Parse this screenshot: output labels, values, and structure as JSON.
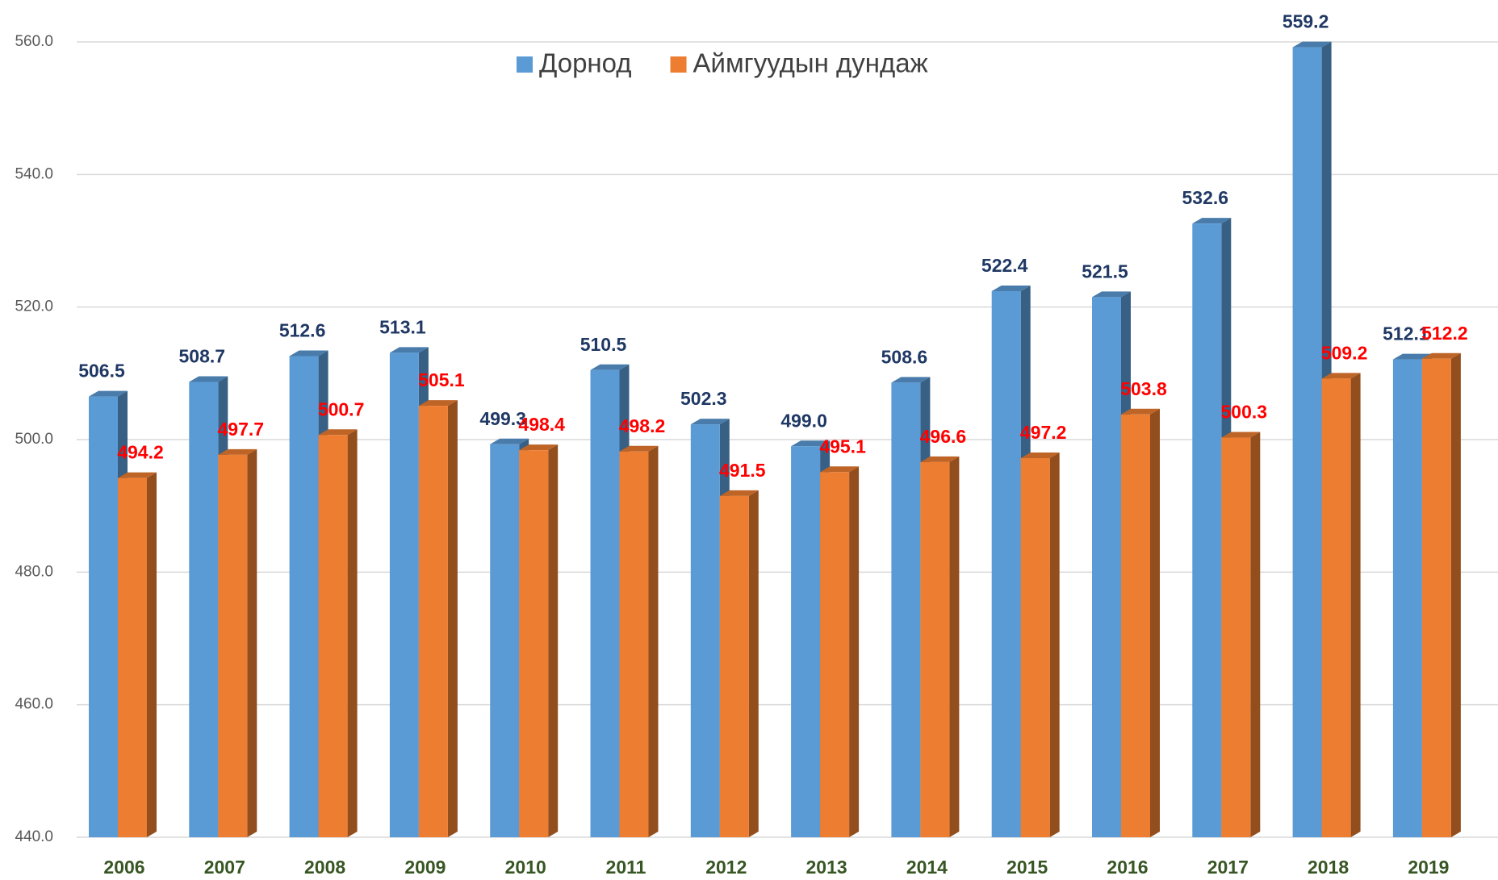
{
  "chart_data": {
    "type": "bar3d",
    "categories": [
      "2006",
      "2007",
      "2008",
      "2009",
      "2010",
      "2011",
      "2012",
      "2013",
      "2014",
      "2015",
      "2016",
      "2017",
      "2018",
      "2019"
    ],
    "series": [
      {
        "name": "Дорнод",
        "color": "#5b9bd5",
        "label_color": "#1f3864",
        "values": [
          506.5,
          508.7,
          512.6,
          513.1,
          499.3,
          510.5,
          502.3,
          499.0,
          508.6,
          522.4,
          521.5,
          532.6,
          559.2,
          512.1
        ],
        "value_labels": [
          "506.5",
          "508.7",
          "512.6",
          "513.1",
          "499.3",
          "510.5",
          "502.3",
          "499.0",
          "508.6",
          "522.4",
          "521.5",
          "532.6",
          "559.2",
          "512.1"
        ]
      },
      {
        "name": "Аймгуудын дундаж",
        "color": "#ed7d31",
        "label_color": "#ff0000",
        "values": [
          494.2,
          497.7,
          500.7,
          505.1,
          498.4,
          498.2,
          491.5,
          495.1,
          496.6,
          497.2,
          503.8,
          500.3,
          509.2,
          512.2
        ],
        "value_labels": [
          "494.2",
          "497.7",
          "500.7",
          "505.1",
          "498.4",
          "498.2",
          "491.5",
          "495.1",
          "496.6",
          "497.2",
          "503.8",
          "500.3",
          "509.2",
          "512.2"
        ]
      }
    ],
    "ylim": [
      440,
      560
    ],
    "yticks": [
      {
        "value": 440,
        "label": "440.0"
      },
      {
        "value": 460,
        "label": "460.0"
      },
      {
        "value": 480,
        "label": "480.0"
      },
      {
        "value": 500,
        "label": "500.0"
      },
      {
        "value": 520,
        "label": "520.0"
      },
      {
        "value": 540,
        "label": "540.0"
      },
      {
        "value": 560,
        "label": "560.0"
      }
    ],
    "grid": true,
    "legend": "top"
  }
}
